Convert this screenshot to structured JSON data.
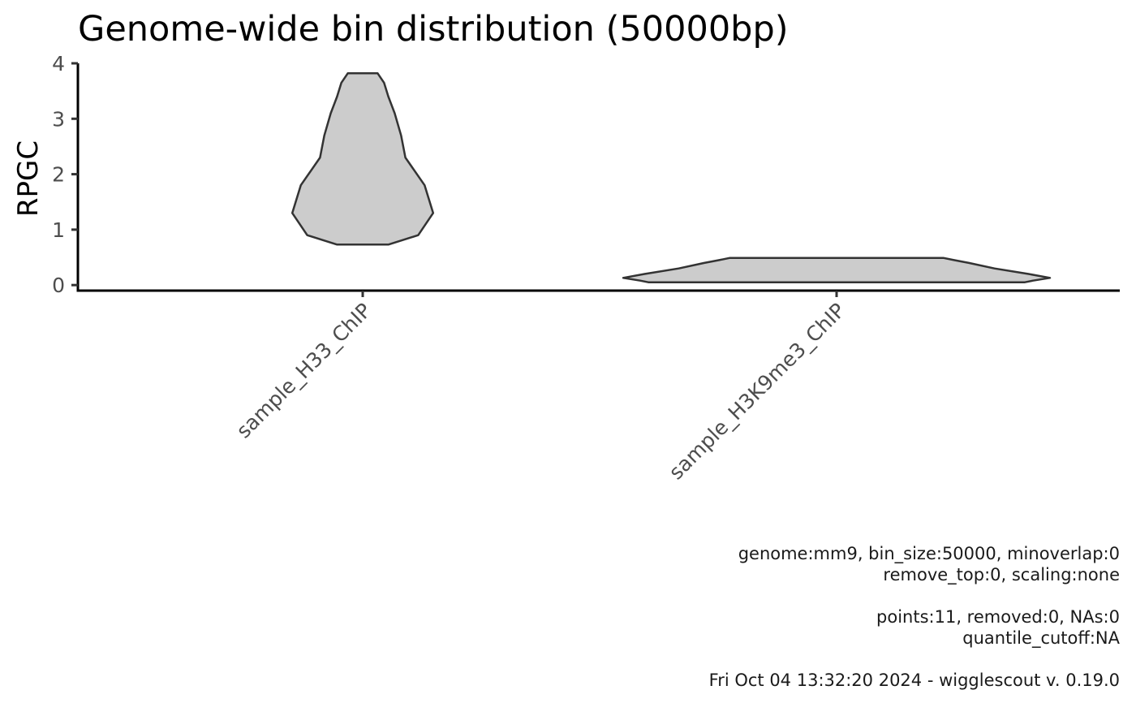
{
  "chart_data": {
    "type": "violin",
    "title": "Genome-wide bin distribution (50000bp)",
    "xlabel": "",
    "ylabel": "RPGC",
    "categories": [
      "sample_H33_ChIP",
      "sample_H3K9me3_ChIP"
    ],
    "ylim": [
      -0.1,
      4.0
    ],
    "yticks": [
      0,
      1,
      2,
      3,
      4
    ],
    "grid": false,
    "legend": "none",
    "fill_color": "#cccccc",
    "outline_color": "#333333",
    "series": [
      {
        "category": "sample_H33_ChIP",
        "min": 0.73,
        "max": 3.82,
        "density_profile": [
          [
            0.73,
            0.12
          ],
          [
            0.9,
            0.26
          ],
          [
            1.3,
            0.33
          ],
          [
            1.8,
            0.29
          ],
          [
            2.3,
            0.2
          ],
          [
            2.7,
            0.18
          ],
          [
            3.1,
            0.15
          ],
          [
            3.4,
            0.12
          ],
          [
            3.65,
            0.1
          ],
          [
            3.82,
            0.07
          ]
        ]
      },
      {
        "category": "sample_H3K9me3_ChIP",
        "min": 0.05,
        "max": 0.49,
        "density_profile": [
          [
            0.05,
            0.88
          ],
          [
            0.08,
            0.92
          ],
          [
            0.13,
            1.0
          ],
          [
            0.2,
            0.9
          ],
          [
            0.3,
            0.74
          ],
          [
            0.4,
            0.62
          ],
          [
            0.45,
            0.55
          ],
          [
            0.49,
            0.5
          ]
        ]
      }
    ]
  },
  "caption_lines": [
    "genome:mm9, bin_size:50000, minoverlap:0",
    "remove_top:0, scaling:none",
    "",
    "points:11, removed:0, NAs:0",
    "quantile_cutoff:NA",
    "",
    "Fri Oct 04 13:32:20 2024 - wigglescout v. 0.19.0"
  ]
}
